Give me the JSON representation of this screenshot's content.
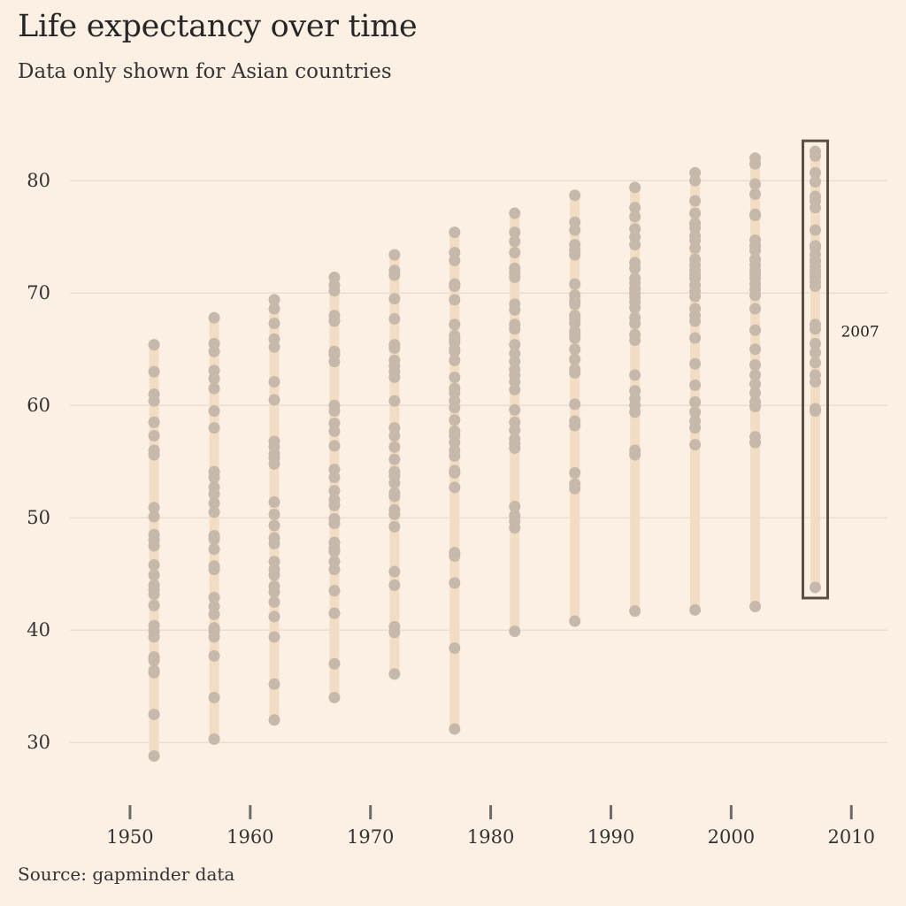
{
  "title": "Life expectancy over time",
  "subtitle": "Data only shown for Asian countries",
  "source": "Source: gapminder data",
  "colors": {
    "background": "#fcf0e4",
    "range_bar": "#f2dcc4",
    "dot": "#c6b8ab",
    "grid": "#e5d7c9",
    "highlight_box": "#5a4e44"
  },
  "chart_data": {
    "type": "scatter",
    "title": "Life expectancy over time",
    "subtitle": "Data only shown for Asian countries",
    "xlabel": "",
    "ylabel": "",
    "xlim": [
      1945,
      2013
    ],
    "ylim": [
      26,
      86
    ],
    "x_ticks": [
      1950,
      1960,
      1970,
      1980,
      1990,
      2000,
      2010
    ],
    "y_ticks": [
      30,
      40,
      50,
      60,
      70,
      80
    ],
    "grid": "horizontal",
    "annotation": {
      "year": 2007,
      "label": "2007"
    },
    "series": [
      {
        "year": 1952,
        "values": [
          28.8,
          32.5,
          36.2,
          36.4,
          37.3,
          37.6,
          39.4,
          39.9,
          40.4,
          42.2,
          43.2,
          43.6,
          44.0,
          44.9,
          45.8,
          47.5,
          48.0,
          48.5,
          50.1,
          50.9,
          55.6,
          56.0,
          57.3,
          58.5,
          60.4,
          61.0,
          63.0,
          65.4
        ]
      },
      {
        "year": 1957,
        "values": [
          30.3,
          34.0,
          37.7,
          39.4,
          39.9,
          40.2,
          41.4,
          42.1,
          42.9,
          45.4,
          45.7,
          47.2,
          48.1,
          48.4,
          50.5,
          51.3,
          52.1,
          52.7,
          53.6,
          54.1,
          58.0,
          59.5,
          61.5,
          62.4,
          63.1,
          64.8,
          65.5,
          67.8
        ]
      },
      {
        "year": 1962,
        "values": [
          32.0,
          35.2,
          39.4,
          41.2,
          42.5,
          43.4,
          43.9,
          44.9,
          45.4,
          46.1,
          47.7,
          48.2,
          49.3,
          50.3,
          51.4,
          54.8,
          55.3,
          55.7,
          56.3,
          56.8,
          60.5,
          62.1,
          65.2,
          65.9,
          67.3,
          68.6,
          69.4
        ]
      },
      {
        "year": 1967,
        "values": [
          34.0,
          37.0,
          41.5,
          43.5,
          45.4,
          46.1,
          47.0,
          47.3,
          47.8,
          49.5,
          49.9,
          51.1,
          51.6,
          52.4,
          53.6,
          54.3,
          56.4,
          57.7,
          58.4,
          59.5,
          60.0,
          63.9,
          64.5,
          64.8,
          67.5,
          68.0,
          70.2,
          70.7,
          71.4
        ]
      },
      {
        "year": 1972,
        "values": [
          36.1,
          39.8,
          40.3,
          44.0,
          45.2,
          49.2,
          50.3,
          50.7,
          51.9,
          52.2,
          53.1,
          53.7,
          54.1,
          55.2,
          56.3,
          57.3,
          58.0,
          60.4,
          62.5,
          63.0,
          63.5,
          64.0,
          65.1,
          65.4,
          67.7,
          69.5,
          71.6,
          72.0,
          73.4
        ]
      },
      {
        "year": 1977,
        "values": [
          31.2,
          38.4,
          44.2,
          46.6,
          46.9,
          52.7,
          54.0,
          54.2,
          55.5,
          56.0,
          56.7,
          57.3,
          57.7,
          58.7,
          59.8,
          60.4,
          61.1,
          61.5,
          62.5,
          64.0,
          64.8,
          65.0,
          65.6,
          65.9,
          66.2,
          67.2,
          69.4,
          70.6,
          70.8,
          72.9,
          73.6,
          75.4
        ]
      },
      {
        "year": 1982,
        "values": [
          39.9,
          49.1,
          49.7,
          50.2,
          51.0,
          56.2,
          56.6,
          57.0,
          57.8,
          58.5,
          59.6,
          61.4,
          62.1,
          62.7,
          63.2,
          63.9,
          64.6,
          65.4,
          66.8,
          67.2,
          68.5,
          69.0,
          71.4,
          71.8,
          72.2,
          73.6,
          74.6,
          75.4,
          77.1
        ]
      },
      {
        "year": 1987,
        "values": [
          40.8,
          52.6,
          53.0,
          54.0,
          58.2,
          58.6,
          60.1,
          62.9,
          63.2,
          64.1,
          65.0,
          66.0,
          66.3,
          66.6,
          67.3,
          67.7,
          68.0,
          69.0,
          69.3,
          69.8,
          70.8,
          73.4,
          73.8,
          74.3,
          75.6,
          76.3,
          78.7
        ]
      },
      {
        "year": 1992,
        "values": [
          41.7,
          55.6,
          56.0,
          59.4,
          60.0,
          60.6,
          61.3,
          62.7,
          65.8,
          66.3,
          67.3,
          67.8,
          68.7,
          69.2,
          69.6,
          70.0,
          70.4,
          70.9,
          71.3,
          72.2,
          72.7,
          74.3,
          75.0,
          75.7,
          76.8,
          77.6,
          79.4
        ]
      },
      {
        "year": 1997,
        "values": [
          41.8,
          56.5,
          58.0,
          58.6,
          59.4,
          60.3,
          61.8,
          63.7,
          66.0,
          67.5,
          68.0,
          68.6,
          69.7,
          70.2,
          70.7,
          71.3,
          71.6,
          72.0,
          72.5,
          73.0,
          74.0,
          74.7,
          75.1,
          75.8,
          76.2,
          77.1,
          78.2,
          80.0,
          80.7
        ]
      },
      {
        "year": 2002,
        "values": [
          42.1,
          56.7,
          57.2,
          59.9,
          60.3,
          61.1,
          61.9,
          62.7,
          63.6,
          65.0,
          66.7,
          68.6,
          69.8,
          70.3,
          70.8,
          71.3,
          71.7,
          72.0,
          72.5,
          73.0,
          73.8,
          74.2,
          74.7,
          76.9,
          77.0,
          78.8,
          79.7,
          81.5,
          82.0
        ]
      },
      {
        "year": 2007,
        "values": [
          43.8,
          59.5,
          59.7,
          62.1,
          62.7,
          63.8,
          64.7,
          65.5,
          66.8,
          67.2,
          70.6,
          71.0,
          71.4,
          71.7,
          72.0,
          72.4,
          72.8,
          72.9,
          73.4,
          74.0,
          74.2,
          74.2,
          75.6,
          77.6,
          78.2,
          78.6,
          79.9,
          80.7,
          82.2,
          82.6
        ]
      }
    ]
  }
}
